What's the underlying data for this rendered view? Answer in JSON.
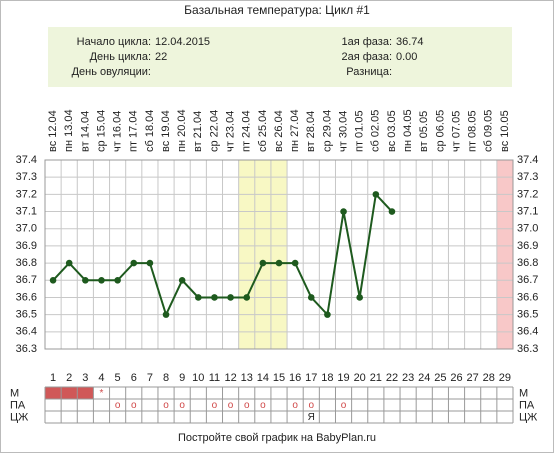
{
  "chart_data": {
    "type": "line",
    "title": "Базальная температура: Цикл #1",
    "info_left": [
      {
        "label": "Начало цикла:",
        "value": "12.04.2015"
      },
      {
        "label": "День цикла:",
        "value": "22"
      },
      {
        "label": "День овуляции:"
      }
    ],
    "info_right": [
      {
        "label": "1ая фаза:",
        "value": "36.74"
      },
      {
        "label": "2ая фаза:",
        "value": "0.00"
      },
      {
        "label": "Разница:"
      }
    ],
    "x": [
      1,
      2,
      3,
      4,
      5,
      6,
      7,
      8,
      9,
      10,
      11,
      12,
      13,
      14,
      15,
      16,
      17,
      18,
      19,
      20,
      21,
      22,
      23,
      24,
      25,
      26,
      27,
      28,
      29
    ],
    "date_labels": [
      "вс 12.04",
      "пн 13.04",
      "вт 14.04",
      "ср 15.04",
      "чт 16.04",
      "пт 17.04",
      "сб 18.04",
      "вс 19.04",
      "пн 20.04",
      "вт 21.04",
      "ср 22.04",
      "чт 23.04",
      "пт 24.04",
      "сб 25.04",
      "вс 26.04",
      "пн 27.04",
      "вт 28.04",
      "ср 29.04",
      "чт 30.04",
      "пт 01.05",
      "сб 02.05",
      "вс 03.05",
      "пн 04.05",
      "вт 05.05",
      "ср 06.05",
      "чт 07.05",
      "пт 08.05",
      "сб 09.05",
      "вс 10.05"
    ],
    "values": [
      36.7,
      36.8,
      36.7,
      36.7,
      36.7,
      36.8,
      36.8,
      36.5,
      36.7,
      36.6,
      36.6,
      36.6,
      36.6,
      36.8,
      36.8,
      36.8,
      36.6,
      36.5,
      37.1,
      36.6,
      37.2,
      37.1,
      null,
      null,
      null,
      null,
      null,
      null,
      null
    ],
    "color": "#1e5a1e",
    "ylim": [
      36.3,
      37.4
    ],
    "yticks": [
      36.3,
      36.4,
      36.5,
      36.6,
      36.7,
      36.8,
      36.9,
      {
        "value": 37,
        "label": "37.0"
      },
      37.1,
      37.2,
      37.3,
      37.4
    ],
    "grid": true,
    "bands": [
      {
        "from": 13,
        "to": 15,
        "color": "#f8f8c4"
      },
      {
        "from": 29,
        "to": 29,
        "color": "#f8c8c8"
      }
    ],
    "rows": [
      {
        "label": "М",
        "filled_days": [
          1,
          2,
          3
        ],
        "fill": "#d05858",
        "cells": [
          {
            "day": 4,
            "text": "*"
          }
        ]
      },
      {
        "label": "ПА",
        "cells": [
          {
            "day": 5,
            "text": "o"
          },
          {
            "day": 6,
            "text": "o"
          },
          {
            "day": 8,
            "text": "o"
          },
          {
            "day": 9,
            "text": "o"
          },
          {
            "day": 11,
            "text": "o"
          },
          {
            "day": 12,
            "text": "o"
          },
          {
            "day": 13,
            "text": "o"
          },
          {
            "day": 14,
            "text": "o"
          },
          {
            "day": 16,
            "text": "o"
          },
          {
            "day": 17,
            "text": "o"
          },
          {
            "day": 19,
            "text": "o"
          }
        ]
      },
      {
        "label": "ЦЖ",
        "cells": [
          {
            "day": 17,
            "text": "Я"
          }
        ]
      }
    ],
    "footer": "Постройте свой график на BabyPlan.ru"
  }
}
